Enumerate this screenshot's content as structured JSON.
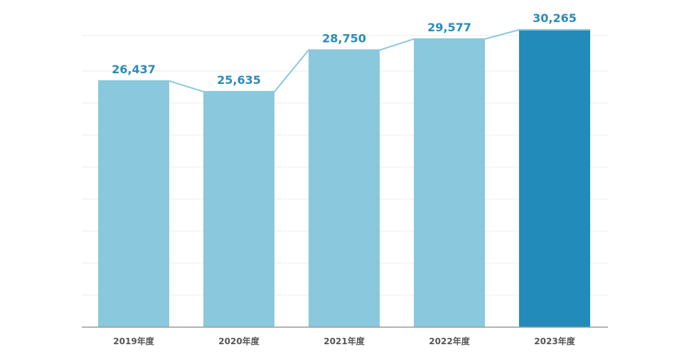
{
  "chart_data": {
    "type": "bar",
    "categories": [
      "2019年度",
      "2020年度",
      "2021年度",
      "2022年度",
      "2023年度"
    ],
    "values": [
      26437,
      25635,
      28750,
      29577,
      30265
    ],
    "data_labels": [
      "26,437",
      "25,635",
      "28,750",
      "29,577",
      "30,265"
    ],
    "title": "",
    "xlabel": "",
    "ylabel": "",
    "ylim": [
      8000,
      30900
    ],
    "grid": true,
    "legend": "none",
    "trend_line": true,
    "highlight_index": 4,
    "colors": {
      "bar": "#8ac8de",
      "bar_highlight": "#228bba",
      "label": "#2a8bb8",
      "line": "#8ac8de"
    }
  }
}
